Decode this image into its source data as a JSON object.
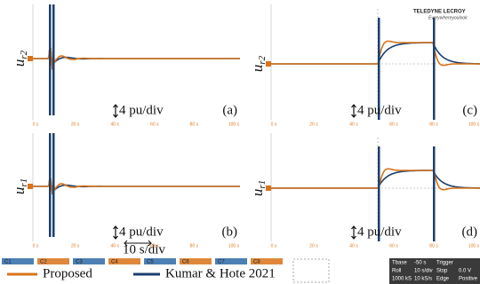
{
  "panels": [
    {
      "label": "(a)",
      "ylabel": {
        "symbol": "u",
        "subscript": "r2"
      },
      "scale": "4 pu/div"
    },
    {
      "label": "(c)",
      "ylabel": {
        "symbol": "u",
        "subscript": "r2"
      },
      "scale": "4 pu/div"
    },
    {
      "label": "(b)",
      "ylabel": {
        "symbol": "u",
        "subscript": "r1"
      },
      "scale": "4 pu/div",
      "time_scale": "10 s/div"
    },
    {
      "label": "(d)",
      "ylabel": {
        "symbol": "u",
        "subscript": "r1"
      },
      "scale": "4 pu/div"
    }
  ],
  "time_ticks": [
    "0 s",
    "20 s",
    "40 s",
    "60 s",
    "80 s",
    "100 s"
  ],
  "logo": {
    "brand": "TELEDYNE LECROY",
    "tagline": "Everywhereyoulook"
  },
  "channels": [
    "C1",
    "C2",
    "C3",
    "C4",
    "C5",
    "C6",
    "C7",
    "C8"
  ],
  "legend": [
    "Proposed",
    "Kumar & Hote 2021"
  ],
  "status": [
    [
      "Tbase",
      "-50 s",
      "Trigger"
    ],
    [
      "Roll",
      "10 s/div",
      "Stop",
      "0.0 V"
    ],
    [
      "1000 kS",
      "10 kS/s",
      "Edge",
      "Positive"
    ]
  ]
}
